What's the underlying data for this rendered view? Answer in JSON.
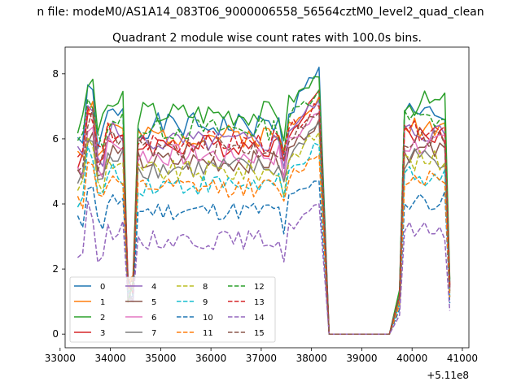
{
  "figure": {
    "suptitle": "n file: modeM0/AS1A14_083T06_9000006558_56564cztM0_level2_quad_clean",
    "title": "Quadrant 2 module wise count rates with 100.0s bins."
  },
  "chart_data": {
    "type": "line",
    "title": "Quadrant 2 module wise count rates with 100.0s bins.",
    "xlabel": "",
    "ylabel": "",
    "x_offset_label": "+5.11e8",
    "xlim": [
      33100,
      41130
    ],
    "ylim": [
      -0.42,
      8.82
    ],
    "x_ticks": [
      33000,
      34000,
      35000,
      36000,
      37000,
      38000,
      39000,
      40000,
      41000
    ],
    "x_tick_labels": [
      "33000",
      "34000",
      "35000",
      "36000",
      "37000",
      "38000",
      "39000",
      "40000",
      "41000"
    ],
    "y_ticks": [
      0,
      2,
      4,
      6,
      8
    ],
    "y_tick_labels": [
      "0",
      "2",
      "4",
      "6",
      "8"
    ],
    "grid": false,
    "legend_placement": "lower-left",
    "legend_columns": 4,
    "series": [
      {
        "name": "0",
        "color": "#1f77b4",
        "dash": "solid",
        "level": 6.4,
        "wave": 0.4,
        "peak": 8.2,
        "seed": 1
      },
      {
        "name": "1",
        "color": "#ff7f0e",
        "dash": "solid",
        "level": 6.1,
        "wave": 0.35,
        "peak": 7.3,
        "seed": 2
      },
      {
        "name": "2",
        "color": "#2ca02c",
        "dash": "solid",
        "level": 6.8,
        "wave": 0.4,
        "peak": 7.9,
        "seed": 3
      },
      {
        "name": "3",
        "color": "#d62728",
        "dash": "solid",
        "level": 5.8,
        "wave": 0.35,
        "peak": 7.5,
        "seed": 4
      },
      {
        "name": "4",
        "color": "#9467bd",
        "dash": "solid",
        "level": 5.9,
        "wave": 0.35,
        "peak": 7.2,
        "seed": 5
      },
      {
        "name": "5",
        "color": "#8c564b",
        "dash": "solid",
        "level": 5.3,
        "wave": 0.35,
        "peak": 6.6,
        "seed": 6
      },
      {
        "name": "6",
        "color": "#e377c2",
        "dash": "solid",
        "level": 5.5,
        "wave": 0.35,
        "peak": 6.8,
        "seed": 7
      },
      {
        "name": "7",
        "color": "#7f7f7f",
        "dash": "solid",
        "level": 5.1,
        "wave": 0.35,
        "peak": 6.5,
        "seed": 8
      },
      {
        "name": "8",
        "color": "#bcbd22",
        "dash": "dashed",
        "level": 5.0,
        "wave": 0.35,
        "peak": 6.2,
        "seed": 9
      },
      {
        "name": "9",
        "color": "#17becf",
        "dash": "dashed",
        "level": 4.6,
        "wave": 0.35,
        "peak": 5.8,
        "seed": 10
      },
      {
        "name": "10",
        "color": "#1f77b4",
        "dash": "dashed",
        "level": 3.8,
        "wave": 0.3,
        "peak": 4.7,
        "seed": 11
      },
      {
        "name": "11",
        "color": "#ff7f0e",
        "dash": "dashed",
        "level": 4.5,
        "wave": 0.3,
        "peak": 5.5,
        "seed": 12
      },
      {
        "name": "12",
        "color": "#2ca02c",
        "dash": "dashed",
        "level": 6.3,
        "wave": 0.35,
        "peak": 7.5,
        "seed": 13
      },
      {
        "name": "13",
        "color": "#d62728",
        "dash": "dashed",
        "level": 5.9,
        "wave": 0.35,
        "peak": 7.0,
        "seed": 14
      },
      {
        "name": "14",
        "color": "#9467bd",
        "dash": "dashed",
        "level": 2.9,
        "wave": 0.3,
        "peak": 4.0,
        "seed": 15
      },
      {
        "name": "15",
        "color": "#8c564b",
        "dash": "dashed",
        "level": 5.7,
        "wave": 0.35,
        "peak": 6.8,
        "seed": 16
      }
    ]
  }
}
